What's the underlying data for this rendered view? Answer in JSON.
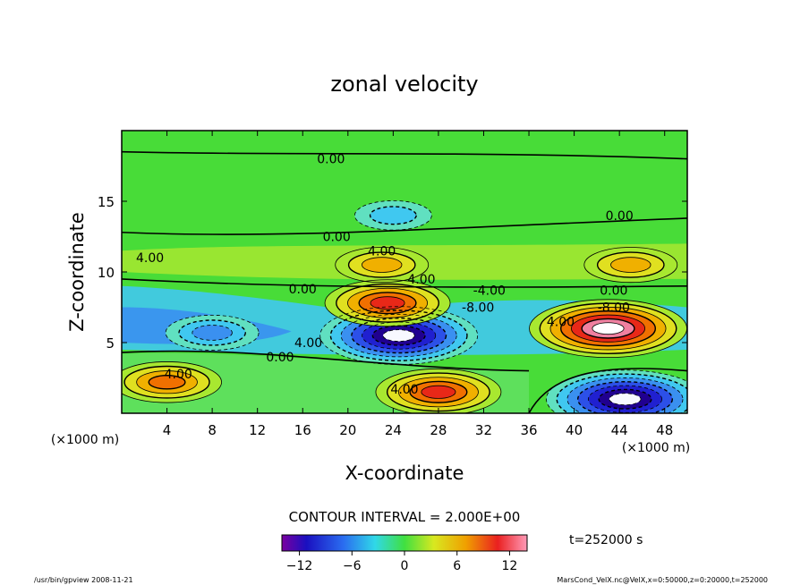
{
  "chart_data": {
    "type": "heatmap",
    "title": "zonal velocity",
    "xlabel": "X-coordinate",
    "ylabel": "Z-coordinate",
    "xunit": "(×1000 m)",
    "yunit": "(×1000 m)",
    "xlim": [
      0,
      50
    ],
    "ylim": [
      0,
      20
    ],
    "xticks": [
      4,
      8,
      12,
      16,
      20,
      24,
      28,
      32,
      36,
      40,
      44,
      48
    ],
    "yticks": [
      5,
      10,
      15
    ],
    "contour_interval_text": "CONTOUR INTERVAL = 2.000E+00",
    "time_text": "t=252000 s",
    "colorbar": {
      "range": [
        -14,
        14
      ],
      "ticks": [
        -12,
        -6,
        0,
        6,
        12
      ]
    },
    "contour_labels": [
      {
        "text": "0.00",
        "x": 18.5,
        "z": 18.0
      },
      {
        "text": "0.00",
        "x": 44.0,
        "z": 14.0
      },
      {
        "text": "0.00",
        "x": 19.0,
        "z": 12.5
      },
      {
        "text": "4.00",
        "x": 23.0,
        "z": 11.5
      },
      {
        "text": "4.00",
        "x": 2.5,
        "z": 11.0
      },
      {
        "text": "4.00",
        "x": 26.5,
        "z": 9.5
      },
      {
        "text": "0.00",
        "x": 16.0,
        "z": 8.8
      },
      {
        "text": "-4.00",
        "x": 32.5,
        "z": 8.7
      },
      {
        "text": "0.00",
        "x": 43.5,
        "z": 8.7
      },
      {
        "text": "-8.00",
        "x": 31.5,
        "z": 7.5
      },
      {
        "text": "-8.00",
        "x": 43.5,
        "z": 7.5
      },
      {
        "text": "4.00",
        "x": 38.8,
        "z": 6.5
      },
      {
        "text": "4.00",
        "x": 16.5,
        "z": 5.0
      },
      {
        "text": "0.00",
        "x": 14.0,
        "z": 4.0
      },
      {
        "text": "4.00",
        "x": 5.0,
        "z": 2.8
      },
      {
        "text": "4.00",
        "x": 25.0,
        "z": 1.7
      }
    ],
    "features": [
      {
        "kind": "negative",
        "x": 24.5,
        "z": 5.5,
        "value": -14
      },
      {
        "kind": "negative",
        "x": 8.0,
        "z": 5.7,
        "value": -6
      },
      {
        "kind": "negative",
        "x": 44.5,
        "z": 1.0,
        "value": -14
      },
      {
        "kind": "negative",
        "x": 24.0,
        "z": 14.0,
        "value": -4
      },
      {
        "kind": "positive",
        "x": 43.0,
        "z": 6.0,
        "value": 14
      },
      {
        "kind": "positive",
        "x": 23.5,
        "z": 7.8,
        "value": 10
      },
      {
        "kind": "positive",
        "x": 28.0,
        "z": 1.5,
        "value": 10
      },
      {
        "kind": "positive",
        "x": 4.0,
        "z": 2.2,
        "value": 8
      },
      {
        "kind": "positive",
        "x": 23.0,
        "z": 10.5,
        "value": 6
      },
      {
        "kind": "positive",
        "x": 45.0,
        "z": 10.5,
        "value": 6
      }
    ]
  },
  "footer": {
    "left": "/usr/bin/gpview  2008-11-21",
    "right": "MarsCond_VelX.nc@VelX,x=0:50000,z=0:20000,t=252000"
  }
}
